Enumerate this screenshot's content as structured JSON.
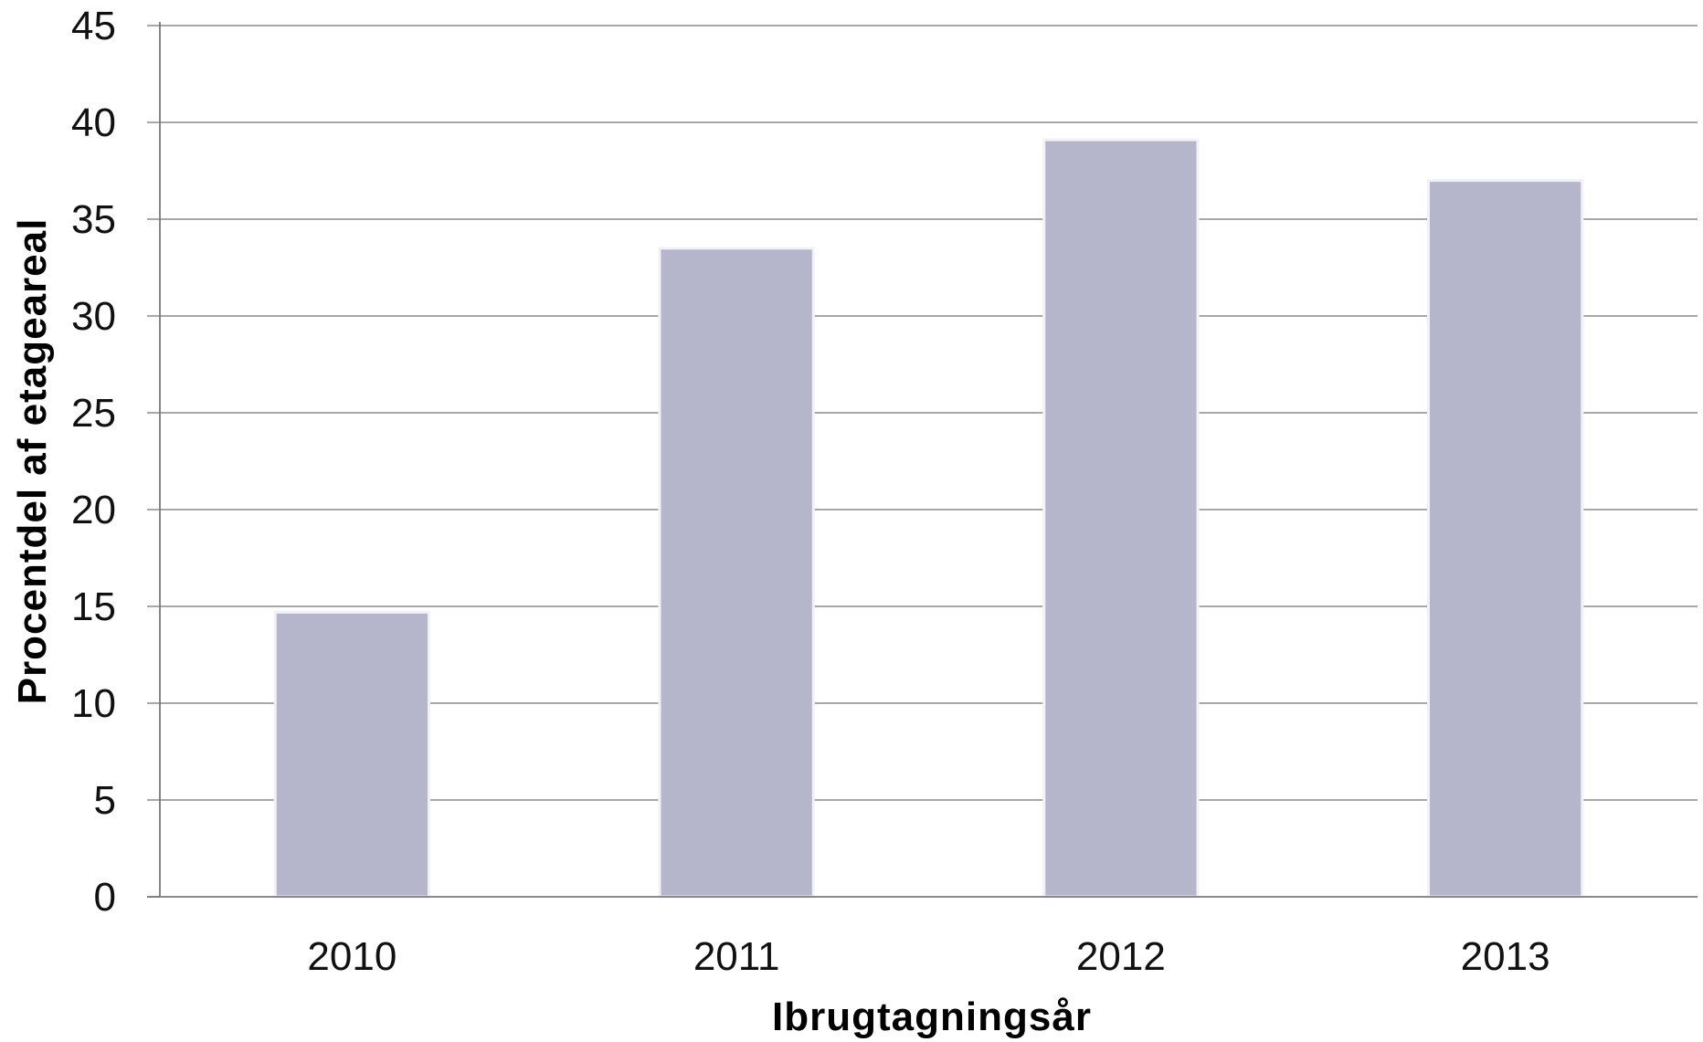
{
  "chart_data": {
    "type": "bar",
    "title": "",
    "xlabel": "Ibrugtagningsår",
    "ylabel": "Procentdel af etageareal",
    "categories": [
      "2010",
      "2011",
      "2012",
      "2013"
    ],
    "values": [
      14.7,
      33.5,
      39.1,
      37.0
    ],
    "ylim": [
      0,
      45
    ],
    "yticks": [
      "0",
      "5",
      "10",
      "15",
      "20",
      "25",
      "30",
      "35",
      "40",
      "45"
    ],
    "grid": true,
    "legend": "none",
    "colors": {
      "bar": "#b5b6cb",
      "bar_edge": "#f2f2f6",
      "grid": "#8c8c8c",
      "axis": "#7a7a7a",
      "text": "#111111"
    }
  }
}
